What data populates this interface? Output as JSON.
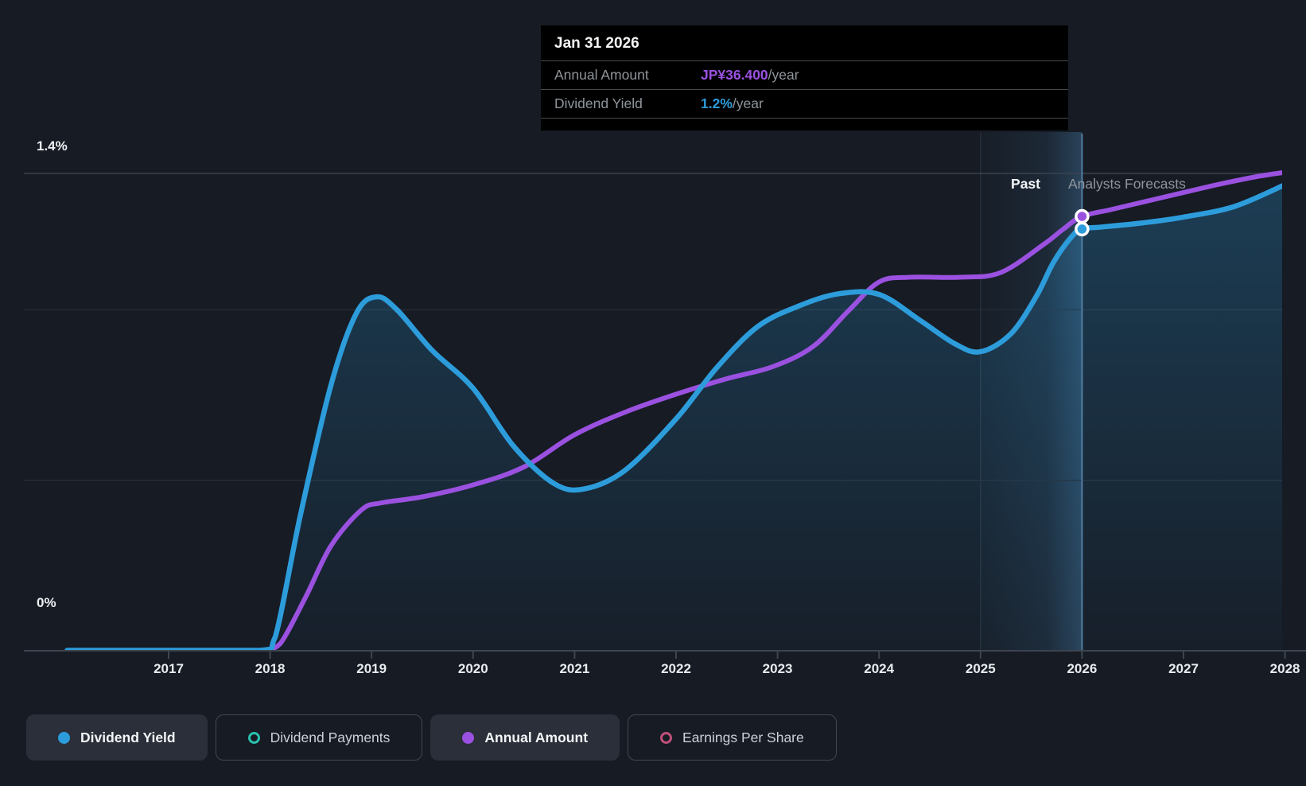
{
  "page": {
    "background": "#161b24"
  },
  "tooltip": {
    "date": "Jan 31 2026",
    "rows": [
      {
        "label": "Annual Amount",
        "value": "JP¥36.400",
        "suffix": "/year",
        "color": "#9b51e0"
      },
      {
        "label": "Dividend Yield",
        "value": "1.2%",
        "suffix": "/year",
        "color": "#2d9cdb"
      }
    ]
  },
  "region_labels": {
    "past": "Past",
    "forecast": "Analysts Forecasts"
  },
  "y_axis_labels": {
    "top": "1.4%",
    "bottom": "0%"
  },
  "legend": [
    {
      "label": "Dividend Yield",
      "color": "#2d9cdb",
      "marker": "filled",
      "active": true
    },
    {
      "label": "Dividend Payments",
      "color": "#2abfae",
      "marker": "ring",
      "active": false
    },
    {
      "label": "Annual Amount",
      "color": "#9b51e0",
      "marker": "filled",
      "active": true
    },
    {
      "label": "Earnings Per Share",
      "color": "#bf5079",
      "marker": "ring",
      "active": false
    }
  ],
  "chart_data": {
    "type": "line",
    "title": "Dividend yield history and forecast",
    "x_tick_labels": [
      "2017",
      "2018",
      "2019",
      "2020",
      "2021",
      "2022",
      "2023",
      "2024",
      "2025",
      "2026",
      "2027",
      "2028"
    ],
    "x_range": [
      2016.0,
      2028.0
    ],
    "ylim_pct": [
      0,
      1.4
    ],
    "y_gridlines_pct": [
      0,
      0.5,
      1.0,
      1.4
    ],
    "grid": true,
    "legend_position": "bottom",
    "past_forecast_divider_x": 2026.0,
    "highlight_band_x": [
      2025.0,
      2026.0
    ],
    "hover": {
      "date": "Jan 31 2026",
      "annual_amount": "JP¥36.400/year",
      "dividend_yield": "1.2%/year"
    },
    "series": [
      {
        "name": "Dividend Yield",
        "unit": "%",
        "color": "#2d9cdb",
        "area_fill": true,
        "marker_point": {
          "date": "Jan 31 2026",
          "x": 2026.0,
          "value": 1.2
        },
        "values_by_year": {
          "2016": 0,
          "2017": 0,
          "2018": 0.05,
          "2019": 1.04,
          "2020": 0.77,
          "2021": 0.43,
          "2022": 0.68,
          "2023": 1.01,
          "2024": 1.05,
          "2025": 0.88,
          "2026": 1.2,
          "2027": 1.27,
          "2028": 1.37
        },
        "points": [
          [
            2016.0,
            0
          ],
          [
            2017.0,
            0
          ],
          [
            2017.9,
            0
          ],
          [
            2018.05,
            0.04
          ],
          [
            2018.3,
            0.4
          ],
          [
            2018.6,
            0.78
          ],
          [
            2018.85,
            0.99
          ],
          [
            2019.05,
            1.038
          ],
          [
            2019.25,
            1.0
          ],
          [
            2019.6,
            0.88
          ],
          [
            2020.0,
            0.77
          ],
          [
            2020.4,
            0.6
          ],
          [
            2020.8,
            0.49
          ],
          [
            2021.1,
            0.475
          ],
          [
            2021.5,
            0.53
          ],
          [
            2022.0,
            0.68
          ],
          [
            2022.4,
            0.83
          ],
          [
            2022.8,
            0.95
          ],
          [
            2023.2,
            1.01
          ],
          [
            2023.6,
            1.047
          ],
          [
            2024.0,
            1.045
          ],
          [
            2024.4,
            0.97
          ],
          [
            2024.75,
            0.9
          ],
          [
            2025.0,
            0.877
          ],
          [
            2025.3,
            0.93
          ],
          [
            2025.55,
            1.04
          ],
          [
            2025.72,
            1.14
          ],
          [
            2025.9,
            1.215
          ],
          [
            2026.0,
            1.237
          ],
          [
            2026.2,
            1.243
          ],
          [
            2026.6,
            1.255
          ],
          [
            2027.0,
            1.272
          ],
          [
            2027.5,
            1.303
          ],
          [
            2028.0,
            1.367
          ]
        ]
      },
      {
        "name": "Annual Amount",
        "unit": "JP¥",
        "color": "#9b51e0",
        "area_fill": false,
        "marker_point": {
          "date": "Jan 31 2026",
          "x": 2026.0,
          "value": 36.4
        },
        "values_by_year": {
          "2018": 0,
          "2019": 12.4,
          "2020": 13.9,
          "2021": 18.1,
          "2022": 21.5,
          "2023": 23.8,
          "2024": 31.0,
          "2025": 31.5,
          "2026": 36.4,
          "2027": 38.3,
          "2028": 40.1
        },
        "points": [
          [
            2017.95,
            0
          ],
          [
            2018.1,
            0.6
          ],
          [
            2018.35,
            4.5
          ],
          [
            2018.6,
            8.8
          ],
          [
            2018.9,
            11.8
          ],
          [
            2019.1,
            12.4
          ],
          [
            2019.5,
            12.9
          ],
          [
            2020.0,
            13.9
          ],
          [
            2020.5,
            15.4
          ],
          [
            2021.0,
            18.1
          ],
          [
            2021.5,
            20.0
          ],
          [
            2022.0,
            21.5
          ],
          [
            2022.5,
            22.8
          ],
          [
            2022.95,
            23.8
          ],
          [
            2023.35,
            25.5
          ],
          [
            2023.7,
            28.5
          ],
          [
            2024.0,
            30.9
          ],
          [
            2024.3,
            31.3
          ],
          [
            2024.8,
            31.3
          ],
          [
            2025.2,
            31.7
          ],
          [
            2025.63,
            34.1
          ],
          [
            2025.81,
            35.3
          ],
          [
            2026.0,
            36.4
          ],
          [
            2026.3,
            37.0
          ],
          [
            2026.8,
            38.0
          ],
          [
            2027.3,
            39.0
          ],
          [
            2027.7,
            39.7
          ],
          [
            2028.0,
            40.1
          ]
        ]
      }
    ]
  }
}
